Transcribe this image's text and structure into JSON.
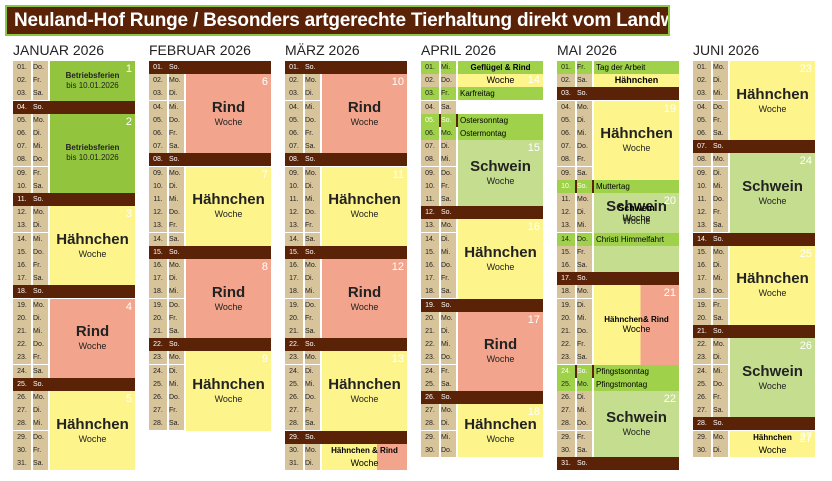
{
  "title": "Neuland-Hof Runge / Besonders artgerechte Tierhaltung direkt vom Landwirt",
  "months": [
    {
      "name": "JANUAR 2026"
    },
    {
      "name": "FEBRUAR 2026"
    },
    {
      "name": "MÄRZ 2026"
    },
    {
      "name": "APRIL 2026"
    },
    {
      "name": "MAI 2026"
    },
    {
      "name": "JUNI 2026"
    }
  ],
  "days": {
    "jan": [
      "01.",
      "02.",
      "03.",
      "04.",
      "05.",
      "06.",
      "07.",
      "08.",
      "09.",
      "10.",
      "11.",
      "12.",
      "13.",
      "14.",
      "15.",
      "16.",
      "17.",
      "18.",
      "19.",
      "20.",
      "21.",
      "22.",
      "23.",
      "24.",
      "25.",
      "26.",
      "27.",
      "28.",
      "29.",
      "30.",
      "31."
    ],
    "jan_wd": [
      "Do.",
      "Fr.",
      "Sa.",
      "So.",
      "Mo.",
      "Di.",
      "Mi.",
      "Do.",
      "Fr.",
      "Sa.",
      "So.",
      "Mo.",
      "Di.",
      "Mi.",
      "Do.",
      "Fr.",
      "Sa.",
      "So.",
      "Mo.",
      "Di.",
      "Mi.",
      "Do.",
      "Fr.",
      "Sa.",
      "So.",
      "Mo.",
      "Di.",
      "Mi.",
      "Do.",
      "Fr.",
      "Sa."
    ],
    "feb_wd": [
      "So.",
      "Mo.",
      "Di.",
      "Mi.",
      "Do.",
      "Fr.",
      "Sa.",
      "So.",
      "Mo.",
      "Di.",
      "Mi.",
      "Do.",
      "Fr.",
      "Sa.",
      "So.",
      "Mo.",
      "Di.",
      "Mi.",
      "Do.",
      "Fr.",
      "Sa.",
      "So.",
      "Mo.",
      "Di.",
      "Mi.",
      "Do.",
      "Fr.",
      "Sa."
    ],
    "mar_wd": [
      "So.",
      "Mo.",
      "Di.",
      "Mi.",
      "Do.",
      "Fr.",
      "Sa.",
      "So.",
      "Mo.",
      "Di.",
      "Mi.",
      "Do.",
      "Fr.",
      "Sa.",
      "So.",
      "Mo.",
      "Di.",
      "Mi.",
      "Do.",
      "Fr.",
      "Sa.",
      "So.",
      "Mo.",
      "Di.",
      "Mi.",
      "Do.",
      "Fr.",
      "Sa.",
      "So.",
      "Mo.",
      "Di."
    ],
    "apr_wd": [
      "Mi.",
      "Do.",
      "Fr.",
      "Sa.",
      "So.",
      "Mo.",
      "Di.",
      "Mi.",
      "Do.",
      "Fr.",
      "Sa.",
      "So.",
      "Mo.",
      "Di.",
      "Mi.",
      "Do.",
      "Fr.",
      "Sa.",
      "So.",
      "Mo.",
      "Di.",
      "Mi.",
      "Do.",
      "Fr.",
      "Sa.",
      "So.",
      "Mo.",
      "Di.",
      "Mi.",
      "Do."
    ],
    "may_wd": [
      "Fr.",
      "Sa.",
      "So.",
      "Mo.",
      "Di.",
      "Mi.",
      "Do.",
      "Fr.",
      "Sa.",
      "So.",
      "Mo.",
      "Di.",
      "Mi.",
      "Do.",
      "Fr.",
      "Sa.",
      "So.",
      "Mo.",
      "Di.",
      "Mi.",
      "Do.",
      "Fr.",
      "Sa.",
      "So.",
      "Mo.",
      "Di.",
      "Mi.",
      "Do.",
      "Fr.",
      "Sa.",
      "So."
    ],
    "jun_wd": [
      "Mo.",
      "Di.",
      "Mi.",
      "Do.",
      "Fr.",
      "Sa.",
      "So.",
      "Mo.",
      "Di.",
      "Mi.",
      "Do.",
      "Fr.",
      "Sa.",
      "So.",
      "Mo.",
      "Di.",
      "Mi.",
      "Do.",
      "Fr.",
      "Sa.",
      "So.",
      "Mo.",
      "Di.",
      "Mi.",
      "Do.",
      "Fr.",
      "Sa.",
      "So.",
      "Mo.",
      "Di."
    ]
  },
  "holidays": {
    "apr_1": "Geflügel & Rind",
    "apr_3": "Karfreitag",
    "apr_5": "Ostersonntag",
    "apr_6": "Ostermontag",
    "may_1": "Tag der Arbeit",
    "may_10": "Muttertag",
    "may_14": "Christi Himmelfahrt",
    "may_24": "Pfingstsonntag",
    "may_25": "Pfingstmontag"
  },
  "labels": {
    "rind": "Rind",
    "haehnchen": "Hähnchen",
    "schwein": "Schwein",
    "woche": "Woche",
    "betriebsferien": "Betriebsferien",
    "bis": "bis 10.01.2026",
    "haehnchen_rind": "Hähnchen & Rind",
    "haehnchen_rind2": "Hähnchen& Rind"
  },
  "weeks": [
    "1",
    "2",
    "3",
    "4",
    "5",
    "6",
    "7",
    "8",
    "9",
    "10",
    "11",
    "12",
    "13",
    "14",
    "15",
    "16",
    "17",
    "18",
    "19",
    "20",
    "21",
    "22",
    "23",
    "24",
    "25",
    "26",
    "27"
  ]
}
